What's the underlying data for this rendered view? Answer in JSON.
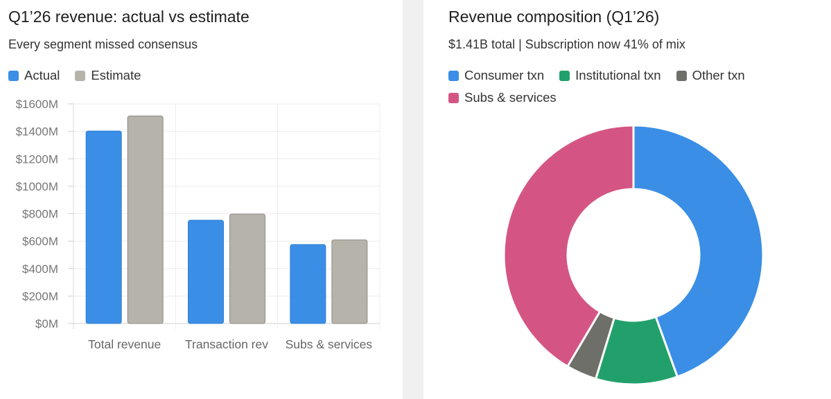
{
  "left": {
    "title": "Q1’26 revenue: actual vs estimate",
    "subtitle": "Every segment missed consensus"
  },
  "right": {
    "title": "Revenue composition (Q1’26)",
    "subtitle": "$1.41B total | Subscription now 41% of mix"
  },
  "chart_data": [
    {
      "type": "bar",
      "title": "Q1’26 revenue: actual vs estimate",
      "subtitle": "Every segment missed consensus",
      "categories": [
        "Total revenue",
        "Transaction rev",
        "Subs & services"
      ],
      "series": [
        {
          "name": "Actual",
          "color": "#3a8ee6",
          "values": [
            1405,
            755,
            578
          ]
        },
        {
          "name": "Estimate",
          "color": "#b6b3ab",
          "values": [
            1515,
            800,
            612
          ]
        }
      ],
      "yticks": [
        "$0M",
        "$200M",
        "$400M",
        "$600M",
        "$800M",
        "$1000M",
        "$1200M",
        "$1400M",
        "$1600M"
      ],
      "ylim": [
        0,
        1600
      ],
      "grid": true,
      "legend": "top-left"
    },
    {
      "type": "pie",
      "title": "Revenue composition (Q1’26)",
      "subtitle": "$1.41B total | Subscription now 41% of mix",
      "donut": true,
      "slices": [
        {
          "name": "Consumer txn",
          "color": "#3a8ee6",
          "value": 44.5
        },
        {
          "name": "Institutional txn",
          "color": "#22a06b",
          "value": 10.2
        },
        {
          "name": "Other txn",
          "color": "#6f6f6a",
          "value": 3.8
        },
        {
          "name": "Subs & services",
          "color": "#d45583",
          "value": 41.5
        }
      ],
      "legend": "top"
    }
  ]
}
